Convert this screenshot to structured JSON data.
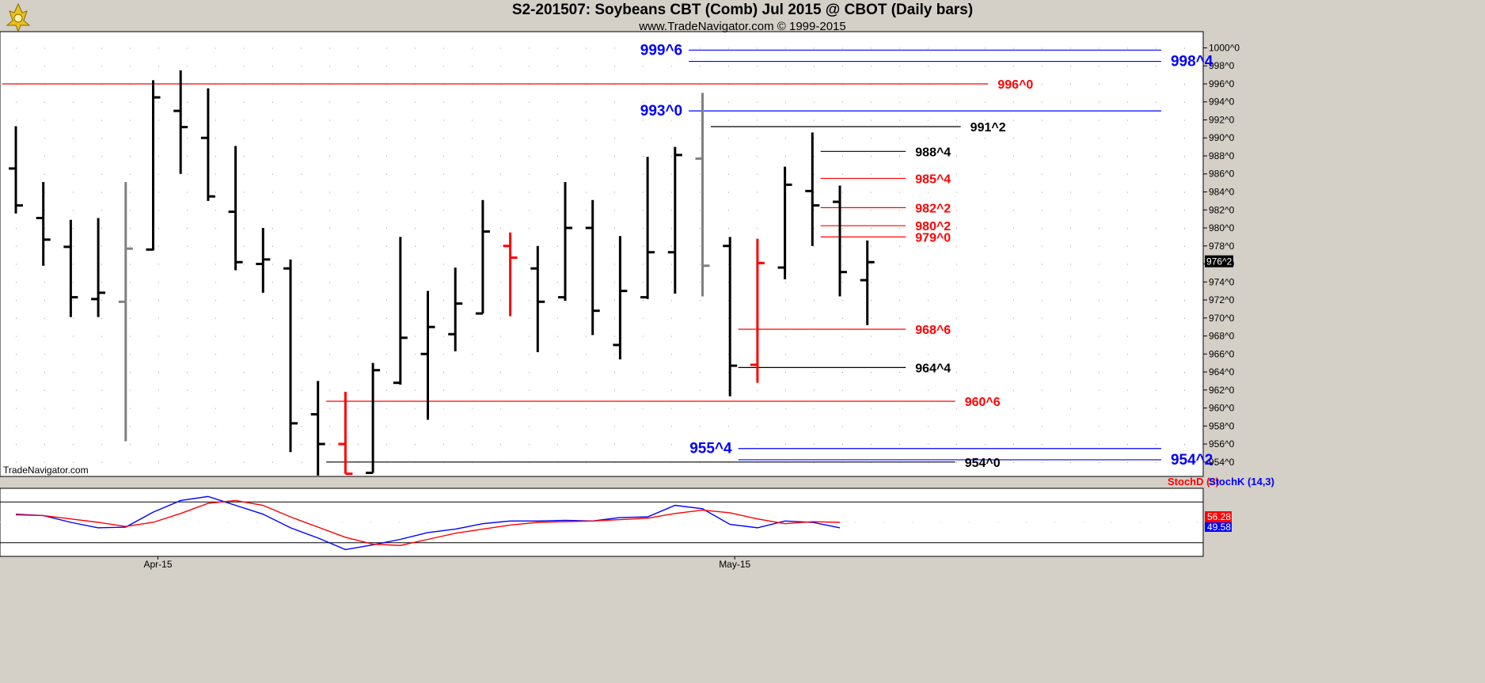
{
  "header": {
    "title": "S2-201507:  Soybeans CBT (Comb) Jul 2015 @ CBOT  (Daily bars)",
    "subtitle": "www.TradeNavigator.com © 1999-2015",
    "watermark": "TradeNavigator.com"
  },
  "colors": {
    "background": "#d4d0c8",
    "plot": "#ffffff",
    "up_bar": "#000000",
    "gray_bar": "#808080",
    "red_bar": "#ff0000",
    "blue_level": "#0000ff",
    "red_level": "#ff0000",
    "black_level": "#000000",
    "stoch_k": "#0000ff",
    "stoch_d": "#ff0000"
  },
  "chart_data": [
    {
      "type": "ohlc",
      "title": "S2-201507:  Soybeans CBT (Comb) Jul 2015 @ CBOT  (Daily bars)",
      "ylim": [
        952.4,
        1001.8
      ],
      "y_ticks": [
        "1000^0",
        "998^0",
        "996^0",
        "994^0",
        "992^0",
        "990^0",
        "988^0",
        "986^0",
        "984^0",
        "982^0",
        "980^0",
        "978^0",
        "976^0",
        "974^0",
        "972^0",
        "970^0",
        "968^0",
        "966^0",
        "964^0",
        "962^0",
        "960^0",
        "958^0",
        "956^0",
        "954^0"
      ],
      "y_tick_values": [
        1000,
        998,
        996,
        994,
        992,
        990,
        988,
        986,
        984,
        982,
        980,
        978,
        976,
        974,
        972,
        970,
        968,
        966,
        964,
        962,
        960,
        958,
        956,
        954
      ],
      "x_labels": [
        {
          "label": "Apr-15",
          "bar": 5
        },
        {
          "label": "May-15",
          "bar": 26
        }
      ],
      "last_price_label": "976^2",
      "last_price": 976.25,
      "bars": [
        {
          "o": 986.6,
          "h": 991.3,
          "l": 981.6,
          "c": 982.5,
          "color": "black"
        },
        {
          "o": 981.1,
          "h": 985.1,
          "l": 975.8,
          "c": 978.7,
          "color": "black"
        },
        {
          "o": 977.9,
          "h": 980.9,
          "l": 970.1,
          "c": 972.3,
          "color": "black"
        },
        {
          "o": 972.1,
          "h": 981.1,
          "l": 970.1,
          "c": 972.8,
          "color": "black"
        },
        {
          "o": 971.8,
          "h": 985.1,
          "l": 956.3,
          "c": 977.7,
          "color": "gray"
        },
        {
          "o": 977.6,
          "h": 996.4,
          "l": 977.5,
          "c": 994.5,
          "color": "black"
        },
        {
          "o": 993.0,
          "h": 997.5,
          "l": 986.0,
          "c": 991.2,
          "color": "black"
        },
        {
          "o": 990.0,
          "h": 995.5,
          "l": 983.0,
          "c": 983.5,
          "color": "black"
        },
        {
          "o": 981.8,
          "h": 989.1,
          "l": 975.3,
          "c": 976.2,
          "color": "black"
        },
        {
          "o": 976.0,
          "h": 980.0,
          "l": 972.8,
          "c": 976.5,
          "color": "black"
        },
        {
          "o": 975.5,
          "h": 976.5,
          "l": 955.1,
          "c": 958.3,
          "color": "black"
        },
        {
          "o": 959.3,
          "h": 963.0,
          "l": 952.5,
          "c": 956.0,
          "color": "black"
        },
        {
          "o": 956.0,
          "h": 961.8,
          "l": 952.7,
          "c": 952.7,
          "color": "red"
        },
        {
          "o": 952.8,
          "h": 965.0,
          "l": 952.8,
          "c": 964.2,
          "color": "black"
        },
        {
          "o": 962.8,
          "h": 979.0,
          "l": 962.6,
          "c": 967.8,
          "color": "black"
        },
        {
          "o": 966.0,
          "h": 973.0,
          "l": 958.7,
          "c": 969.0,
          "color": "black"
        },
        {
          "o": 968.2,
          "h": 975.6,
          "l": 966.3,
          "c": 971.6,
          "color": "black"
        },
        {
          "o": 970.5,
          "h": 983.1,
          "l": 970.5,
          "c": 979.6,
          "color": "black"
        },
        {
          "o": 978.0,
          "h": 979.5,
          "l": 970.2,
          "c": 976.7,
          "color": "red"
        },
        {
          "o": 975.5,
          "h": 978.0,
          "l": 966.2,
          "c": 971.8,
          "color": "black"
        },
        {
          "o": 972.3,
          "h": 985.1,
          "l": 971.9,
          "c": 980.0,
          "color": "black"
        },
        {
          "o": 980.0,
          "h": 983.1,
          "l": 968.1,
          "c": 970.8,
          "color": "black"
        },
        {
          "o": 967.0,
          "h": 979.1,
          "l": 965.4,
          "c": 973.0,
          "color": "black"
        },
        {
          "o": 972.3,
          "h": 987.9,
          "l": 972.1,
          "c": 977.3,
          "color": "black"
        },
        {
          "o": 977.3,
          "h": 989.0,
          "l": 972.7,
          "c": 988.1,
          "color": "black"
        },
        {
          "o": 987.7,
          "h": 995.0,
          "l": 972.4,
          "c": 975.8,
          "color": "gray"
        },
        {
          "o": 978.0,
          "h": 979.0,
          "l": 961.3,
          "c": 964.7,
          "color": "black"
        },
        {
          "o": 964.8,
          "h": 978.8,
          "l": 962.8,
          "c": 976.1,
          "color": "red"
        },
        {
          "o": 975.6,
          "h": 986.8,
          "l": 974.3,
          "c": 984.8,
          "color": "black"
        },
        {
          "o": 984.1,
          "h": 990.6,
          "l": 978.0,
          "c": 982.5,
          "color": "black"
        },
        {
          "o": 982.9,
          "h": 984.7,
          "l": 972.4,
          "c": 975.1,
          "color": "black"
        },
        {
          "o": 974.2,
          "h": 978.6,
          "l": 969.2,
          "c": 976.2,
          "color": "black"
        }
      ],
      "levels": [
        {
          "label": "999^6",
          "price": 999.75,
          "color": "blue",
          "from_bar": 24.5,
          "to_bar": 41.7,
          "label_side": "left"
        },
        {
          "label": "998^4",
          "price": 998.5,
          "color": "blue",
          "from_bar": 24.5,
          "to_bar": 41.7,
          "label_side": "right"
        },
        {
          "label": "996^0",
          "price": 996.0,
          "color": "red",
          "from_bar": -0.5,
          "to_bar": 35.4,
          "label_side": "right"
        },
        {
          "label": "993^0",
          "price": 993.0,
          "color": "blue",
          "from_bar": 24.5,
          "to_bar": 41.7,
          "label_side": "left"
        },
        {
          "label": "991^2",
          "price": 991.25,
          "color": "black",
          "from_bar": 25.3,
          "to_bar": 34.4,
          "label_side": "right"
        },
        {
          "label": "988^4",
          "price": 988.5,
          "color": "black",
          "from_bar": 29.3,
          "to_bar": 32.4,
          "label_side": "right"
        },
        {
          "label": "985^4",
          "price": 985.5,
          "color": "red",
          "from_bar": 29.3,
          "to_bar": 32.4,
          "label_side": "right"
        },
        {
          "label": "982^2",
          "price": 982.25,
          "color": "red",
          "from_bar": 29.3,
          "to_bar": 32.4,
          "label_side": "right"
        },
        {
          "label": "980^2",
          "price": 980.25,
          "color": "red",
          "from_bar": 29.3,
          "to_bar": 32.4,
          "label_side": "right"
        },
        {
          "label": "979^0",
          "price": 979.0,
          "color": "red",
          "from_bar": 29.3,
          "to_bar": 32.4,
          "label_side": "right"
        },
        {
          "label": "968^6",
          "price": 968.75,
          "color": "red",
          "from_bar": 26.3,
          "to_bar": 32.4,
          "label_side": "right"
        },
        {
          "label": "964^4",
          "price": 964.5,
          "color": "black",
          "from_bar": 26.3,
          "to_bar": 32.4,
          "label_side": "right"
        },
        {
          "label": "960^6",
          "price": 960.75,
          "color": "red",
          "from_bar": 11.3,
          "to_bar": 34.2,
          "label_side": "right"
        },
        {
          "label": "955^4",
          "price": 955.5,
          "color": "blue",
          "from_bar": 26.3,
          "to_bar": 41.7,
          "label_side": "left"
        },
        {
          "label": "954^2",
          "price": 954.25,
          "color": "blue",
          "from_bar": 26.3,
          "to_bar": 41.7,
          "label_side": "right"
        },
        {
          "label": "954^0",
          "price": 954.0,
          "color": "black",
          "from_bar": 11.3,
          "to_bar": 34.2,
          "label_side": "right"
        }
      ]
    },
    {
      "type": "line",
      "title": "",
      "legend": [
        "StochD (3)",
        "StochK (14,3)"
      ],
      "ylim": [
        0,
        100
      ],
      "series": [
        {
          "name": "StochK (14,3)",
          "color": "blue",
          "values": [
            62,
            60,
            50,
            42,
            43,
            65,
            82,
            88,
            75,
            62,
            42,
            27,
            10,
            17,
            25,
            35,
            40,
            48,
            52,
            52,
            53,
            52,
            57,
            58,
            75,
            70,
            47,
            42,
            52,
            50,
            42
          ]
        },
        {
          "name": "StochD (3)",
          "color": "red",
          "values": [
            61,
            60,
            55,
            50,
            44,
            50,
            63,
            78,
            82,
            75,
            58,
            43,
            28,
            18,
            16,
            25,
            34,
            40,
            46,
            50,
            51,
            52,
            54,
            56,
            63,
            68,
            64,
            55,
            48,
            51,
            50
          ]
        }
      ],
      "value_labels": [
        "56.28",
        "49.58"
      ]
    }
  ]
}
